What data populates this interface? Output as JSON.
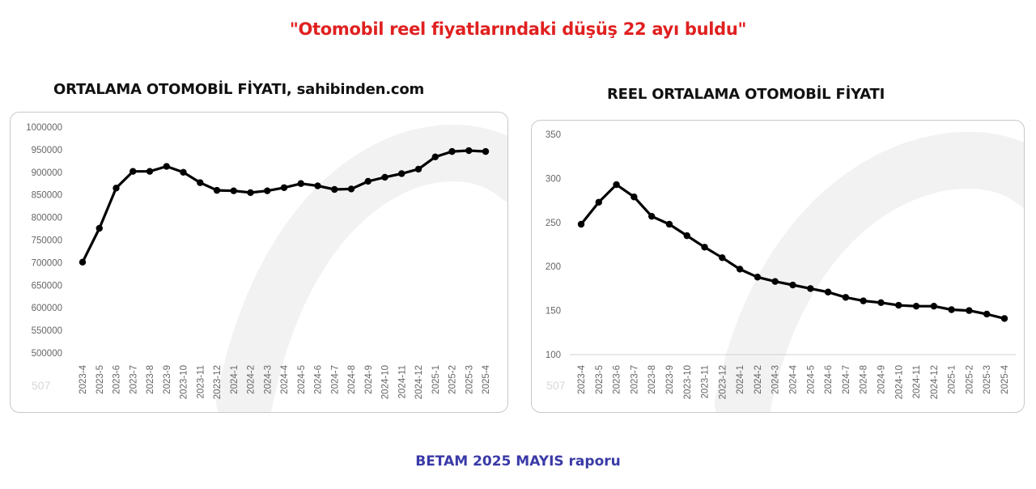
{
  "headline": "\"Otomobil reel fiyatlarındaki düşüş 22 ayı buldu\"",
  "footer": "BETAM 2025 MAYIS raporu",
  "colors": {
    "headline": "#e02020",
    "footer": "#3a3aa8",
    "line": "#000000",
    "grid": "#e4e4e4",
    "tick": "#666666",
    "watermark": "#f2f2f2"
  },
  "chart_data": [
    {
      "type": "line",
      "title": "ORTALAMA OTOMOBİL FİYATI, sahibinden.com",
      "watermark_text": "507",
      "x": [
        "2023-4",
        "2023-5",
        "2023-6",
        "2023-7",
        "2023-8",
        "2023-9",
        "2023-10",
        "2023-11",
        "2023-12",
        "2024-1",
        "2024-2",
        "2024-3",
        "2024-4",
        "2024-5",
        "2024-6",
        "2024-7",
        "2024-8",
        "2024-9",
        "2024-10",
        "2024-11",
        "2024-12",
        "2025-1",
        "2025-2",
        "2025-3",
        "2025-4"
      ],
      "series": [
        {
          "values": [
            701000,
            776000,
            865000,
            902000,
            902000,
            913000,
            900000,
            877000,
            860000,
            859000,
            855000,
            859000,
            866000,
            875000,
            870000,
            862000,
            863000,
            880000,
            889000,
            897000,
            907000,
            934000,
            946000,
            948000,
            946000
          ]
        }
      ],
      "ylim": [
        500000,
        1000000
      ],
      "yticks": [
        500000,
        550000,
        600000,
        650000,
        700000,
        750000,
        800000,
        850000,
        900000,
        950000,
        1000000
      ],
      "ytick_labels": [
        "500000",
        "550000",
        "600000",
        "650000",
        "700000",
        "750000",
        "800000",
        "850000",
        "900000",
        "950000",
        "1000000"
      ],
      "grid": false
    },
    {
      "type": "line",
      "title": "REEL ORTALAMA OTOMOBİL FİYATI",
      "watermark_text": "507",
      "x": [
        "2023-4",
        "2023-5",
        "2023-6",
        "2023-7",
        "2023-8",
        "2023-9",
        "2023-10",
        "2023-11",
        "2023-12",
        "2024-1",
        "2024-2",
        "2024-3",
        "2024-4",
        "2024-5",
        "2024-6",
        "2024-7",
        "2024-8",
        "2024-9",
        "2024-10",
        "2024-11",
        "2024-12",
        "2025-1",
        "2025-2",
        "2025-3",
        "2025-4"
      ],
      "series": [
        {
          "values": [
            248,
            273,
            293,
            279,
            257,
            248,
            235,
            222,
            210,
            197,
            188,
            183,
            179,
            175,
            171,
            165,
            161,
            159,
            156,
            155,
            155,
            151,
            150,
            146,
            141
          ]
        }
      ],
      "ylim": [
        100,
        350
      ],
      "yticks": [
        100,
        150,
        200,
        250,
        300,
        350
      ],
      "ytick_labels": [
        "100",
        "150",
        "200",
        "250",
        "300",
        "350"
      ],
      "grid": "bottom axis only"
    }
  ]
}
